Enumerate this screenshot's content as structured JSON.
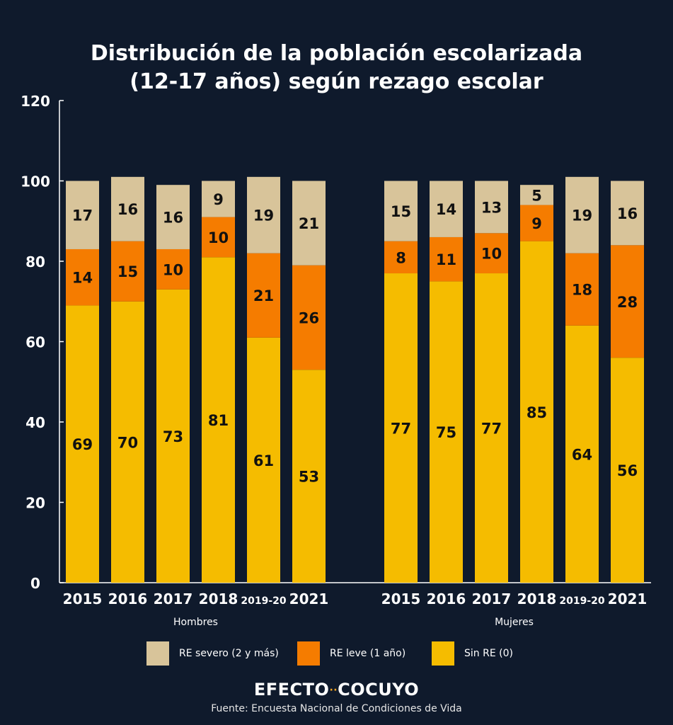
{
  "title_lines": [
    "Distribución de la población escolarizada",
    "(12-17 años) según rezago escolar"
  ],
  "colors": {
    "background": "#0f1a2c",
    "sin_re": "#f5bc00",
    "re_leve": "#f57c00",
    "re_severo": "#d8c49a",
    "axis": "#ffffff",
    "label_text": "#111111"
  },
  "chart_data": {
    "type": "bar",
    "stacked": true,
    "ylim": [
      0,
      120
    ],
    "yticks": [
      0,
      20,
      40,
      60,
      80,
      100,
      120
    ],
    "grid": false,
    "legend_position": "bottom",
    "groups": [
      {
        "name": "Hombres",
        "categories": [
          "2015",
          "2016",
          "2017",
          "2018",
          "2019-20",
          "2021"
        ],
        "sin_re": [
          69,
          70,
          73,
          81,
          61,
          53
        ],
        "re_leve": [
          14,
          15,
          10,
          10,
          21,
          26
        ],
        "re_severo": [
          17,
          16,
          16,
          9,
          19,
          21
        ]
      },
      {
        "name": "Mujeres",
        "categories": [
          "2015",
          "2016",
          "2017",
          "2018",
          "2019-20",
          "2021"
        ],
        "sin_re": [
          77,
          75,
          77,
          85,
          64,
          56
        ],
        "re_leve": [
          8,
          11,
          10,
          9,
          18,
          28
        ],
        "re_severo": [
          15,
          14,
          13,
          5,
          19,
          16
        ]
      }
    ],
    "series": [
      {
        "key": "sin_re",
        "name": "Sin RE (0)"
      },
      {
        "key": "re_leve",
        "name": "RE leve (1 año)"
      },
      {
        "key": "re_severo",
        "name": "RE severo (2 y más)"
      }
    ]
  },
  "legend": [
    {
      "label": "RE severo (2 y más)",
      "color_key": "re_severo"
    },
    {
      "label": "RE leve (1 año)",
      "color_key": "re_leve"
    },
    {
      "label": "Sin RE (0)",
      "color_key": "sin_re"
    }
  ],
  "brand": {
    "left": "EFECTO",
    "dots": "··",
    "right": "COCUYO"
  },
  "source": "Fuente: Encuesta Nacional de Condiciones de Vida"
}
